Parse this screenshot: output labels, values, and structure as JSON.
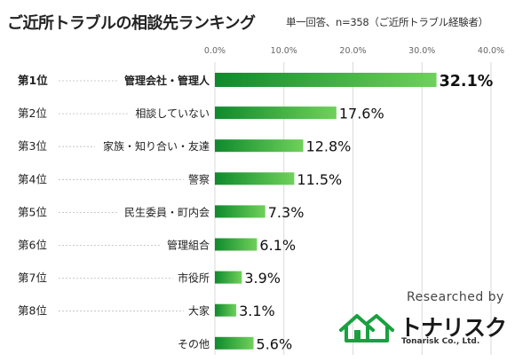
{
  "header": {
    "title": "ご近所トラブルの相談先ランキング",
    "subtitle": "単一回答、n=358（ご近所トラブル経験者）"
  },
  "colors": {
    "bar_dark": "#0f8a2c",
    "bar_light": "#6fd15a",
    "grid": "#d9d9d9",
    "text": "#222222"
  },
  "brand": {
    "researched_by": "Researched by",
    "name": "トナリスク",
    "sub": "Tonarisk Co., Ltd.",
    "logo_icon": "house-icon"
  },
  "chart_data": {
    "type": "bar",
    "orientation": "horizontal",
    "xlim": [
      0,
      40
    ],
    "x_ticks": [
      "0.0%",
      "10.0%",
      "20.0%",
      "30.0%",
      "40.0%"
    ],
    "grid": true,
    "ranks": [
      "第1位",
      "第2位",
      "第3位",
      "第4位",
      "第5位",
      "第6位",
      "第7位",
      "第8位",
      ""
    ],
    "categories": [
      "管理会社・管理人",
      "相談していない",
      "家族・知り合い・友達",
      "警察",
      "民生委員・町内会",
      "管理組合",
      "市役所",
      "大家",
      "その他"
    ],
    "values": [
      32.1,
      17.6,
      12.8,
      11.5,
      7.3,
      6.1,
      3.9,
      3.1,
      5.6
    ],
    "value_labels": [
      "32.1%",
      "17.6%",
      "12.8%",
      "11.5%",
      "7.3%",
      "6.1%",
      "3.9%",
      "3.1%",
      "5.6%"
    ],
    "highlight_first": true
  }
}
